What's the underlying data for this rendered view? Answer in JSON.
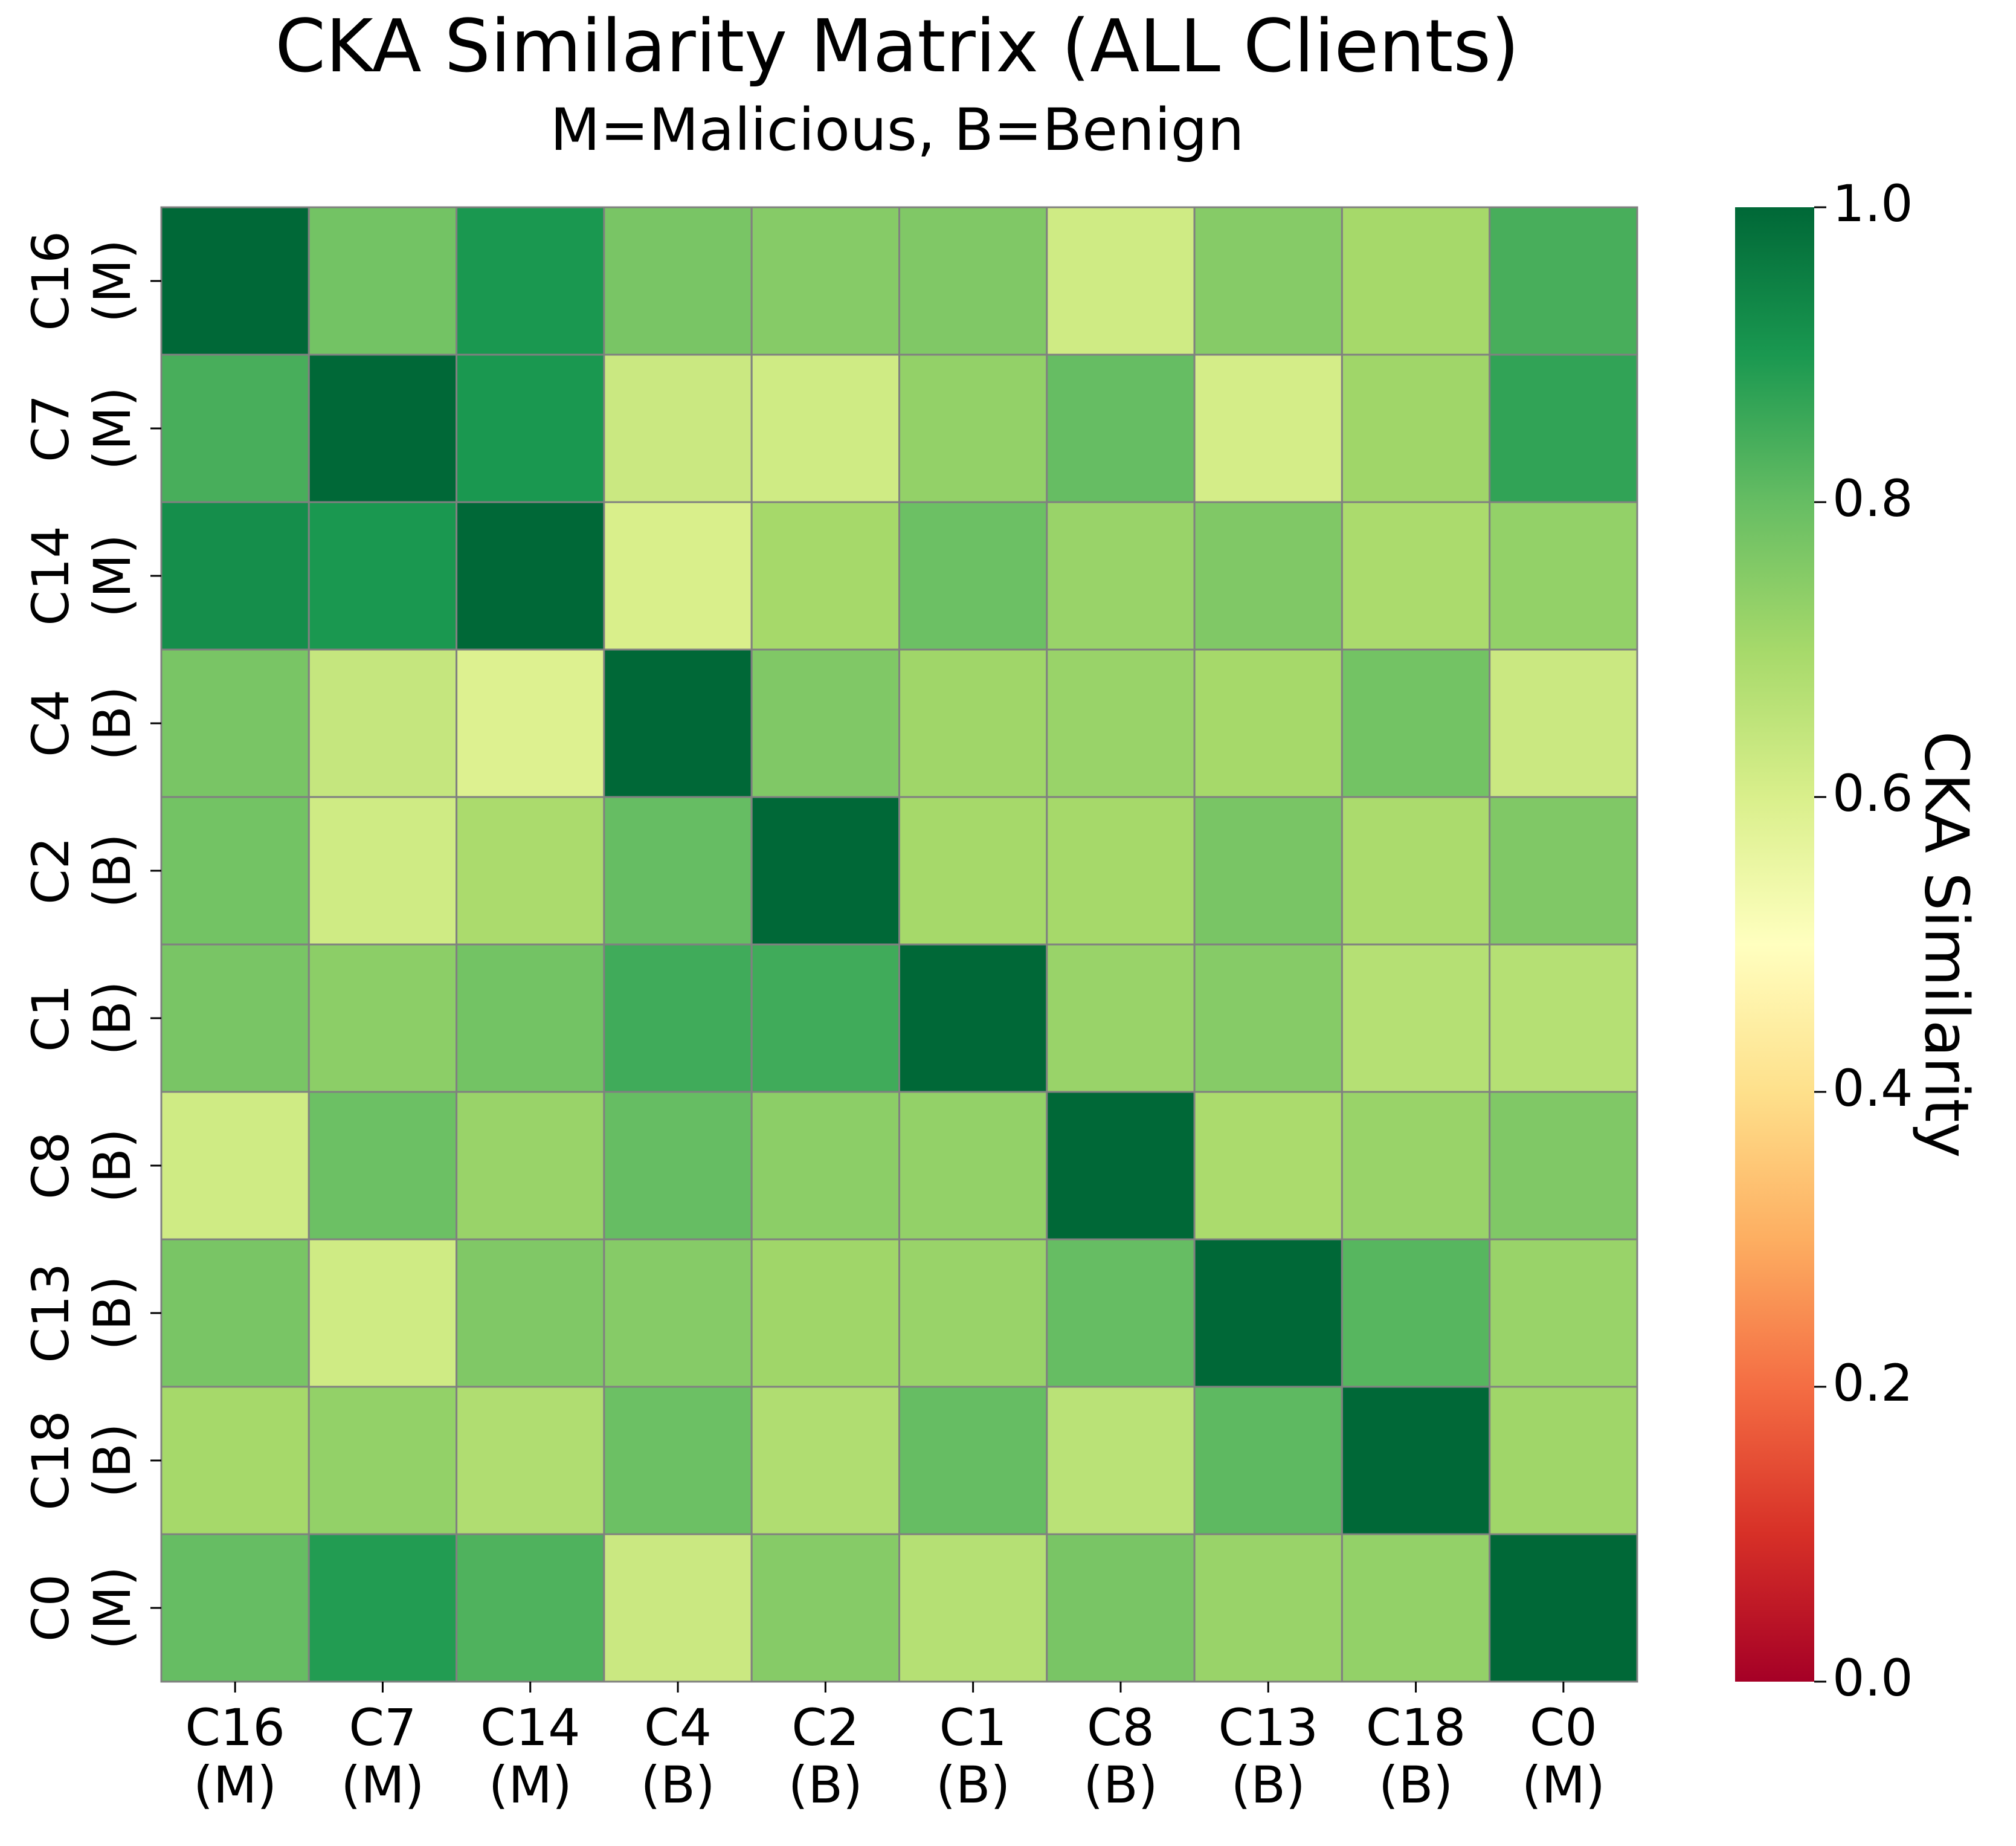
{
  "chart_data": {
    "type": "heatmap",
    "title": "CKA Similarity Matrix (ALL Clients)",
    "subtitle": "M=Malicious, B=Benign",
    "rows": [
      {
        "name": "C16",
        "tag": "(M)"
      },
      {
        "name": "C7",
        "tag": "(M)"
      },
      {
        "name": "C14",
        "tag": "(M)"
      },
      {
        "name": "C4",
        "tag": "(B)"
      },
      {
        "name": "C2",
        "tag": "(B)"
      },
      {
        "name": "C1",
        "tag": "(B)"
      },
      {
        "name": "C8",
        "tag": "(B)"
      },
      {
        "name": "C13",
        "tag": "(B)"
      },
      {
        "name": "C18",
        "tag": "(B)"
      },
      {
        "name": "C0",
        "tag": "(M)"
      }
    ],
    "columns": [
      {
        "name": "C16",
        "tag": "(M)"
      },
      {
        "name": "C7",
        "tag": "(M)"
      },
      {
        "name": "C14",
        "tag": "(M)"
      },
      {
        "name": "C4",
        "tag": "(B)"
      },
      {
        "name": "C2",
        "tag": "(B)"
      },
      {
        "name": "C1",
        "tag": "(B)"
      },
      {
        "name": "C8",
        "tag": "(B)"
      },
      {
        "name": "C13",
        "tag": "(B)"
      },
      {
        "name": "C18",
        "tag": "(B)"
      },
      {
        "name": "C0",
        "tag": "(M)"
      }
    ],
    "values": [
      [
        1.0,
        0.78,
        0.9,
        0.77,
        0.75,
        0.76,
        0.62,
        0.75,
        0.7,
        0.84
      ],
      [
        0.84,
        1.0,
        0.9,
        0.63,
        0.62,
        0.73,
        0.8,
        0.61,
        0.71,
        0.87
      ],
      [
        0.92,
        0.9,
        1.0,
        0.6,
        0.7,
        0.79,
        0.72,
        0.76,
        0.69,
        0.73
      ],
      [
        0.77,
        0.64,
        0.59,
        1.0,
        0.76,
        0.71,
        0.72,
        0.7,
        0.78,
        0.63
      ],
      [
        0.78,
        0.62,
        0.69,
        0.8,
        1.0,
        0.7,
        0.7,
        0.77,
        0.69,
        0.76
      ],
      [
        0.77,
        0.74,
        0.78,
        0.85,
        0.85,
        1.0,
        0.72,
        0.75,
        0.67,
        0.67
      ],
      [
        0.62,
        0.79,
        0.72,
        0.8,
        0.74,
        0.73,
        1.0,
        0.69,
        0.72,
        0.76
      ],
      [
        0.77,
        0.62,
        0.76,
        0.75,
        0.71,
        0.72,
        0.8,
        1.0,
        0.82,
        0.72
      ],
      [
        0.7,
        0.73,
        0.68,
        0.79,
        0.68,
        0.8,
        0.66,
        0.81,
        1.0,
        0.71
      ],
      [
        0.8,
        0.89,
        0.83,
        0.63,
        0.75,
        0.67,
        0.77,
        0.72,
        0.73,
        1.0
      ]
    ],
    "colormap": "RdYlGn",
    "vmin": 0.0,
    "vmax": 1.0,
    "colorbar": {
      "label": "CKA Similarity",
      "ticks": [
        0.0,
        0.2,
        0.4,
        0.6,
        0.8,
        1.0
      ],
      "tick_labels": [
        "0.0",
        "0.2",
        "0.4",
        "0.6",
        "0.8",
        "1.0"
      ]
    },
    "cell_border_color": "#808080"
  }
}
